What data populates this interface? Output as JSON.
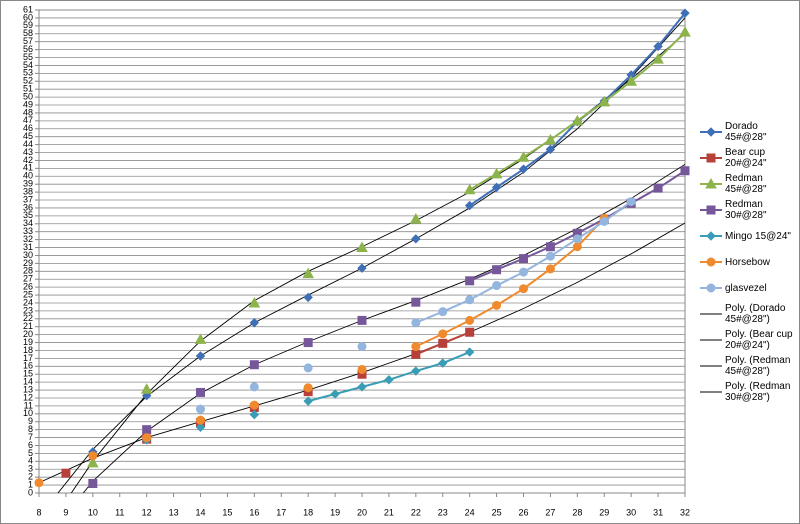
{
  "chart_data": {
    "type": "scatter-line",
    "x": [
      8,
      9,
      10,
      11,
      12,
      13,
      14,
      15,
      16,
      17,
      18,
      19,
      20,
      21,
      22,
      23,
      24,
      25,
      26,
      27,
      28,
      29,
      30,
      31,
      32
    ],
    "xlim": [
      8,
      32
    ],
    "xticks": [
      8,
      9,
      10,
      11,
      12,
      13,
      14,
      15,
      16,
      17,
      18,
      19,
      20,
      21,
      22,
      23,
      24,
      25,
      26,
      27,
      28,
      29,
      30,
      31,
      32
    ],
    "ylim": [
      0,
      61
    ],
    "yticks": [
      0,
      1,
      2,
      3,
      4,
      5,
      6,
      7,
      8,
      9,
      10,
      11,
      12,
      13,
      14,
      15,
      16,
      17,
      18,
      19,
      20,
      21,
      22,
      23,
      24,
      25,
      26,
      27,
      28,
      29,
      30,
      31,
      32,
      33,
      34,
      35,
      36,
      37,
      38,
      39,
      40,
      41,
      42,
      43,
      44,
      45,
      46,
      47,
      48,
      49,
      50,
      51,
      52,
      53,
      54,
      55,
      56,
      57,
      58,
      59,
      60,
      61
    ],
    "grid": true,
    "legend": "right",
    "series": [
      {
        "name": "Dorado 45#@28\"",
        "color": "#3f6fb6",
        "marker": "diamond",
        "values": [
          null,
          null,
          5.2,
          null,
          12.3,
          null,
          17.3,
          null,
          21.5,
          null,
          24.7,
          null,
          28.4,
          null,
          32.1,
          null,
          36.3,
          38.6,
          40.9,
          43.4,
          46.9,
          49.5,
          52.8,
          56.4,
          60.6
        ]
      },
      {
        "name": "Bear cup 20#@24\"",
        "color": "#b8403b",
        "marker": "square",
        "values": [
          null,
          2.5,
          null,
          null,
          6.8,
          null,
          8.9,
          null,
          10.8,
          null,
          12.8,
          null,
          15.0,
          null,
          17.5,
          18.9,
          20.3,
          null,
          null,
          null,
          null,
          null,
          null,
          null,
          null
        ]
      },
      {
        "name": "Redman 45#@28\"",
        "color": "#8db34d",
        "marker": "triangle",
        "values": [
          null,
          null,
          3.8,
          null,
          13.1,
          null,
          19.4,
          null,
          24.0,
          null,
          27.7,
          null,
          31.0,
          null,
          34.6,
          null,
          38.3,
          40.3,
          42.4,
          44.6,
          47.0,
          49.4,
          52.0,
          54.8,
          58.2
        ]
      },
      {
        "name": "Redman 30#@28\"",
        "color": "#76589a",
        "marker": "square",
        "values": [
          null,
          null,
          1.2,
          null,
          8.0,
          null,
          12.7,
          null,
          16.2,
          null,
          19.0,
          null,
          21.8,
          null,
          24.1,
          null,
          26.8,
          28.2,
          29.6,
          31.1,
          32.8,
          34.6,
          36.6,
          38.5,
          40.7
        ]
      },
      {
        "name": "Mingo 15@24\"",
        "color": "#3a9db6",
        "marker": "diamond",
        "values": [
          null,
          null,
          null,
          null,
          6.7,
          null,
          8.3,
          null,
          9.9,
          null,
          11.6,
          12.5,
          13.4,
          14.3,
          15.4,
          16.4,
          17.8,
          null,
          null,
          null,
          null,
          null,
          null,
          null,
          null
        ]
      },
      {
        "name": "Horsebow",
        "color": "#f08a2e",
        "marker": "circle",
        "values": [
          1.3,
          null,
          4.7,
          null,
          7.0,
          null,
          9.2,
          null,
          11.1,
          null,
          13.3,
          null,
          15.6,
          null,
          18.5,
          20.1,
          21.8,
          23.7,
          25.8,
          28.3,
          31.1,
          34.7,
          null,
          null,
          null
        ]
      },
      {
        "name": "glasvezel",
        "color": "#93b5de",
        "marker": "circle",
        "values": [
          null,
          null,
          null,
          null,
          null,
          null,
          10.6,
          null,
          13.4,
          null,
          15.8,
          null,
          18.5,
          null,
          21.5,
          22.9,
          24.4,
          26.2,
          27.9,
          29.9,
          32.1,
          34.3,
          36.8,
          null,
          null
        ]
      }
    ],
    "trendlines": [
      {
        "name": "Poly. (Dorado 45#@28\")",
        "color": "#000000",
        "x": [
          8,
          10,
          12,
          14,
          16,
          18,
          20,
          22,
          24,
          26,
          28,
          30,
          32
        ],
        "values": [
          -3,
          5.5,
          12.2,
          17.3,
          21.5,
          25,
          28.4,
          32.1,
          36,
          40.5,
          46,
          52.5,
          60
        ]
      },
      {
        "name": "Poly. (Bear cup 20#@24\")",
        "color": "#000000",
        "x": [
          8,
          10,
          12,
          14,
          16,
          18,
          20,
          22,
          24,
          26,
          28,
          30,
          32
        ],
        "values": [
          1.3,
          4.4,
          7,
          9,
          11,
          13,
          15.2,
          17.6,
          20.3,
          23.3,
          26.6,
          30.2,
          34.1
        ]
      },
      {
        "name": "Poly. (Redman 45#@28\")",
        "color": "#000000",
        "x": [
          8,
          10,
          12,
          14,
          16,
          18,
          20,
          22,
          24,
          26,
          28,
          30,
          32
        ],
        "values": [
          -6,
          4,
          12.5,
          19.2,
          24.3,
          28,
          31.1,
          34.4,
          38,
          42.2,
          47,
          52.3,
          58
        ]
      },
      {
        "name": "Poly. (Redman 30#@28\")",
        "color": "#000000",
        "x": [
          8,
          10,
          12,
          14,
          16,
          18,
          20,
          22,
          24,
          26,
          28,
          30,
          32
        ],
        "values": [
          -7,
          1.5,
          7.8,
          12.6,
          16.2,
          19.1,
          21.8,
          24.3,
          27,
          30,
          33.4,
          37.2,
          41.5
        ]
      }
    ]
  }
}
